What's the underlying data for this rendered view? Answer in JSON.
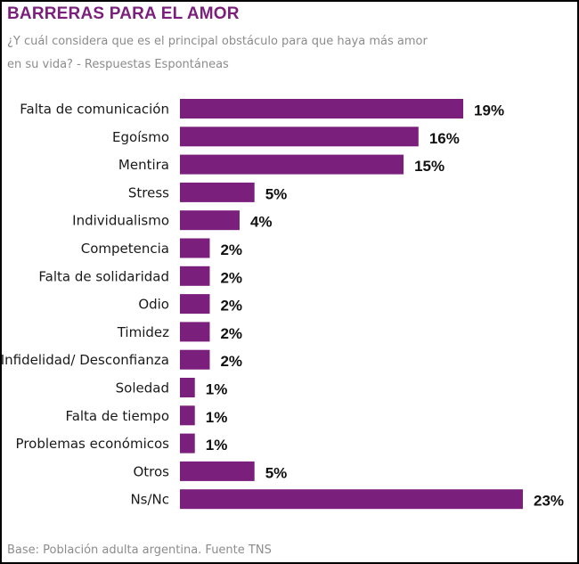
{
  "header": {
    "title": "BARRERAS PARA EL AMOR",
    "subtitle": "¿Y cuál considera que es el principal obstáculo para que haya más amor en su vida? - Respuestas Espontáneas"
  },
  "footer": {
    "source": "Base: Población adulta argentina. Fuente TNS"
  },
  "colors": {
    "bar": "#7b1f7d",
    "title": "#7b1f7d",
    "muted_text": "#8c8c8c"
  },
  "chart_data": {
    "type": "bar",
    "orientation": "horizontal",
    "title": "BARRERAS PARA EL AMOR",
    "xlabel": "",
    "ylabel": "",
    "value_suffix": "%",
    "xlim": [
      0,
      23
    ],
    "grid": false,
    "legend": "none",
    "categories": [
      "Falta de comunicación",
      "Egoísmo",
      "Mentira",
      "Stress",
      "Individualismo",
      "Competencia",
      "Falta de solidaridad",
      "Odio",
      "Timidez",
      "Infidelidad/ Desconfianza",
      "Soledad",
      "Falta de tiempo",
      "Problemas económicos",
      "Otros",
      "Ns/Nc"
    ],
    "values": [
      19,
      16,
      15,
      5,
      4,
      2,
      2,
      2,
      2,
      2,
      1,
      1,
      1,
      5,
      23
    ],
    "value_labels": [
      "19%",
      "16%",
      "15%",
      "5%",
      "4%",
      "2%",
      "2%",
      "2%",
      "2%",
      "2%",
      "1%",
      "1%",
      "1%",
      "5%",
      "23%"
    ]
  }
}
